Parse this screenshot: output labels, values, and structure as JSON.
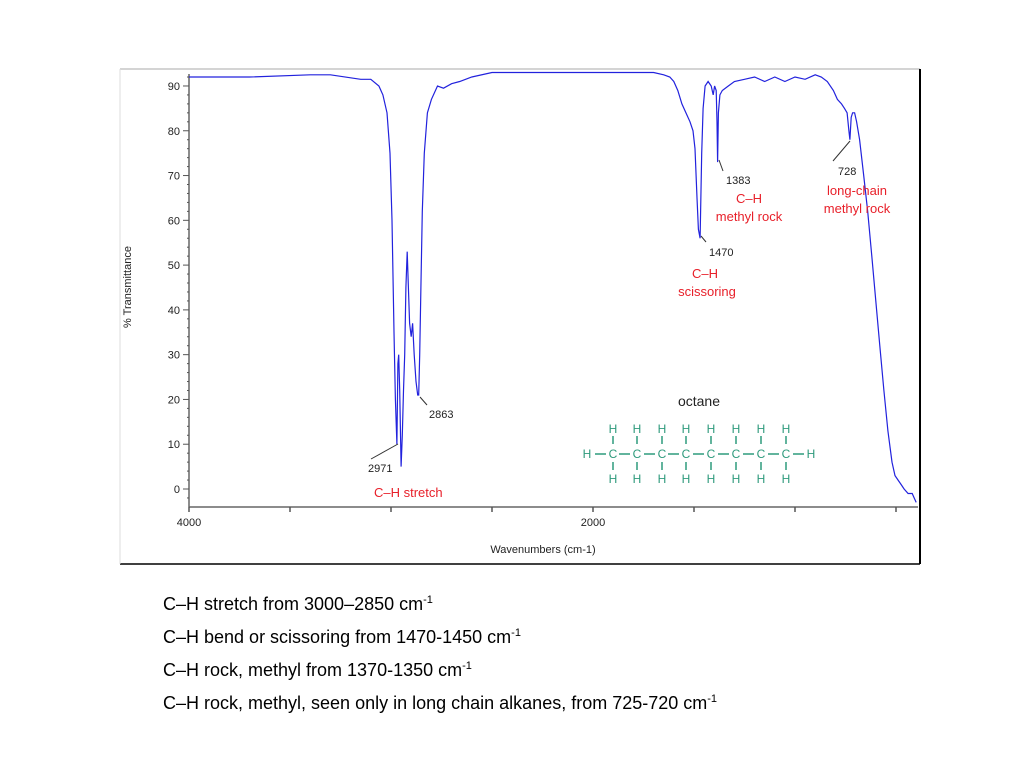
{
  "chart_data": {
    "type": "line",
    "title": "",
    "xlabel": "Wavenumbers (cm-1)",
    "ylabel": "% Transmittance",
    "xlim": [
      4000,
      400
    ],
    "ylim": [
      -4,
      93
    ],
    "x_reversed": true,
    "grid": false,
    "x_tick_labels": [
      "4000",
      "2000"
    ],
    "x_ticks": [
      4000,
      3500,
      3000,
      2500,
      2000,
      1500,
      1000,
      500
    ],
    "y_ticks": [
      0,
      10,
      20,
      30,
      40,
      50,
      60,
      70,
      80,
      90
    ],
    "y_tick_labels": [
      "0",
      "10",
      "20",
      "30",
      "40",
      "50",
      "60",
      "70",
      "80",
      "90"
    ],
    "series_color": "#2222dd",
    "series": [
      {
        "x": [
          4000,
          3700,
          3400,
          3300,
          3150,
          3100,
          3060,
          3040,
          3020,
          3005,
          2995,
          2985,
          2978,
          2971,
          2966,
          2962,
          2957,
          2950,
          2944,
          2938,
          2932,
          2926,
          2920,
          2914,
          2908,
          2900,
          2893,
          2885,
          2876,
          2868,
          2863,
          2858,
          2852,
          2845,
          2835,
          2820,
          2800,
          2770,
          2740,
          2700,
          2660,
          2600,
          2500,
          2300,
          2000,
          1800,
          1700,
          1650,
          1620,
          1600,
          1580,
          1560,
          1540,
          1520,
          1505,
          1495,
          1485,
          1478,
          1470,
          1462,
          1455,
          1445,
          1430,
          1415,
          1405,
          1398,
          1390,
          1386,
          1383,
          1379,
          1372,
          1360,
          1330,
          1300,
          1250,
          1200,
          1150,
          1100,
          1050,
          1000,
          950,
          900,
          870,
          840,
          810,
          790,
          770,
          755,
          742,
          733,
          728,
          722,
          715,
          705,
          695,
          680,
          660,
          640,
          620,
          600,
          580,
          560,
          540,
          520,
          505,
          490,
          475,
          460,
          440,
          420,
          410,
          400
        ],
        "y": [
          92,
          92,
          92.5,
          92.5,
          91.5,
          91.5,
          90,
          88,
          84,
          75,
          60,
          35,
          20,
          10,
          28,
          30,
          22,
          5,
          12,
          22,
          30,
          45,
          53,
          45,
          37,
          34,
          37,
          30,
          24,
          21,
          21,
          30,
          45,
          62,
          75,
          84,
          87,
          90,
          89.5,
          90.5,
          91,
          92,
          93,
          93,
          93,
          93,
          93,
          92.5,
          92,
          91,
          89,
          86,
          84,
          82,
          80,
          76,
          65,
          58,
          56,
          75,
          85,
          90,
          91,
          90,
          88,
          90,
          89,
          82,
          73,
          84,
          88,
          89,
          90,
          91,
          91.5,
          92,
          91,
          92,
          91,
          92,
          91.5,
          92.5,
          92,
          91,
          89,
          87,
          86,
          85,
          84,
          80,
          78,
          83,
          84,
          84,
          82,
          78,
          70,
          62,
          52,
          42,
          32,
          22,
          13,
          6,
          3,
          2,
          1,
          0,
          -1,
          -1,
          -2,
          -3
        ]
      }
    ],
    "annotations": [
      {
        "peak": "2971",
        "label": "C–H stretch"
      },
      {
        "peak": "2863",
        "label": ""
      },
      {
        "peak": "1470",
        "label": "C–H",
        "label2": "scissoring"
      },
      {
        "peak": "1383",
        "label": "C–H",
        "label2": "methyl rock"
      },
      {
        "peak": "728",
        "label": "long-chain",
        "label2": "methyl rock"
      }
    ],
    "molecule": {
      "name": "octane",
      "h": "H",
      "c": "C"
    }
  },
  "notes": [
    {
      "text": "C–H stretch from 3000–2850 cm",
      "sup": "-1"
    },
    {
      "text": "C–H bend or scissoring from 1470-1450 cm",
      "sup": "-1"
    },
    {
      "text": "C–H rock, methyl from 1370-1350 cm",
      "sup": "-1"
    },
    {
      "text": "C–H rock, methyl, seen only in long chain alkanes, from 725-720 cm",
      "sup": "-1"
    }
  ]
}
